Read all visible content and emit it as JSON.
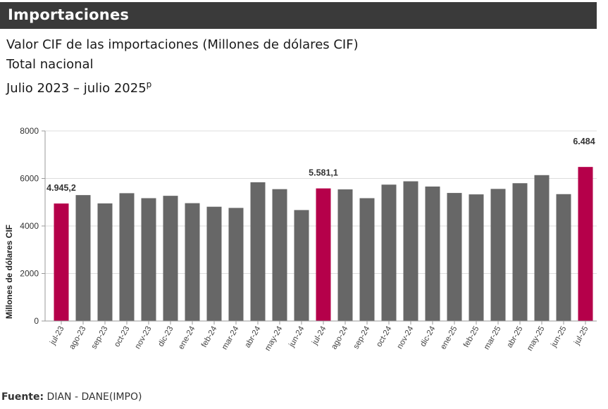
{
  "header": {
    "title": "Importaciones"
  },
  "subtitle": {
    "line1": "Valor CIF de las importaciones (Millones de dólares CIF)",
    "line2": "Total nacional",
    "line3": "Julio 2023 – julio 2025",
    "line3_sup": "p"
  },
  "source": {
    "label": "Fuente:",
    "text": "DIAN - DANE(IMPO)"
  },
  "chart_data": {
    "type": "bar",
    "ylabel": "Millones de dólares CIF",
    "xlabel": "",
    "ylim": [
      0,
      8000
    ],
    "yticks": [
      "0",
      "2000",
      "4000",
      "6000",
      "8000"
    ],
    "grid": true,
    "categories": [
      "jul-23",
      "ago-23",
      "sep-23",
      "oct-23",
      "nov-23",
      "dic-23",
      "ene-24",
      "feb-24",
      "mar-24",
      "abr-24",
      "may-24",
      "jun-24",
      "jul-24",
      "ago-24",
      "sep-24",
      "oct-24",
      "nov-24",
      "dic-24",
      "ene-25",
      "feb-25",
      "mar-25",
      "abr-25",
      "may-25",
      "jun-25",
      "jul-25"
    ],
    "values": [
      4945.2,
      5300,
      4950,
      5380,
      5170,
      5270,
      4960,
      4810,
      4760,
      5840,
      5550,
      4670,
      5581.1,
      5540,
      5170,
      5740,
      5880,
      5660,
      5390,
      5330,
      5560,
      5800,
      6140,
      5340,
      6484
    ],
    "highlight": [
      "jul-23",
      "jul-24",
      "jul-25"
    ],
    "data_labels": [
      {
        "category": "jul-23",
        "text": "4.945,2"
      },
      {
        "category": "jul-24",
        "text": "5.581,1"
      },
      {
        "category": "jul-25",
        "text": "6.484"
      }
    ],
    "colors": {
      "bar": "#676767",
      "highlight": "#b5004a",
      "grid": "#dddddd",
      "axis": "#999999"
    }
  }
}
